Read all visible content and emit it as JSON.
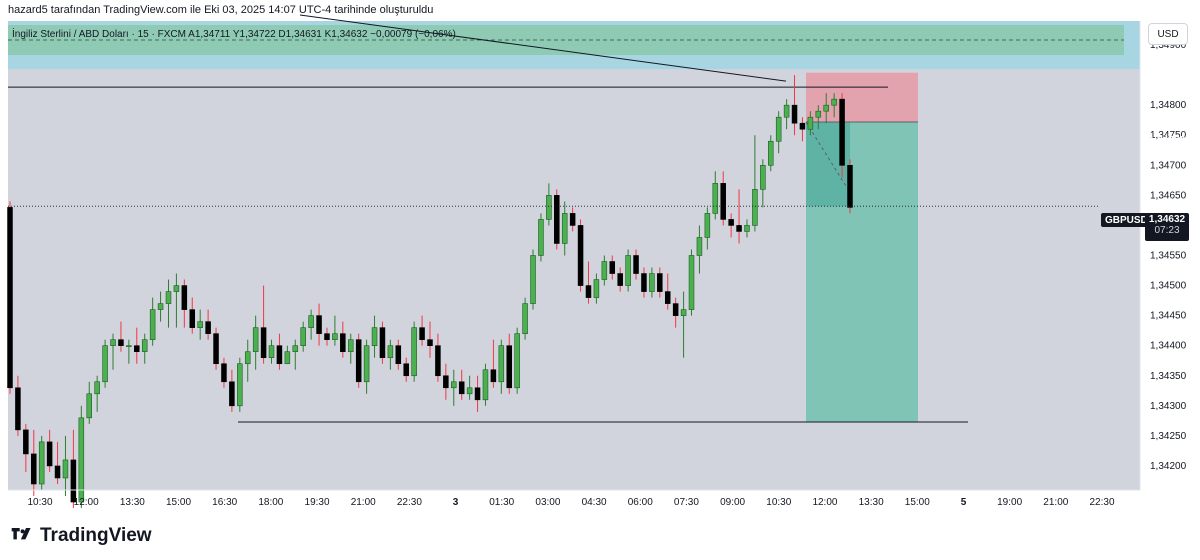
{
  "header": {
    "caption": "hazard5 tarafından TradingView.com ile Eki 03, 2025 14:07 UTC-4 tarihinde oluşturuldu"
  },
  "legend": {
    "text": "İngiliz Sterlini / ABD Doları · 15 · FXCM  A1,34711  Y1,34722  D1,34631  K1,34632  −0,00079 (−0,06%)"
  },
  "currency_button": "USD",
  "price_axis": {
    "ticks": [
      "1,34900",
      "1,34800",
      "1,34750",
      "1,34700",
      "1,34650",
      "1,34550",
      "1,34500",
      "1,34450",
      "1,34400",
      "1,34350",
      "1,34300",
      "1,34250",
      "1,34200"
    ]
  },
  "time_axis": {
    "labels": [
      "10:30",
      "12:00",
      "13:30",
      "15:00",
      "16:30",
      "18:00",
      "19:30",
      "21:00",
      "22:30",
      "3",
      "01:30",
      "03:00",
      "04:30",
      "06:00",
      "07:30",
      "09:00",
      "10:30",
      "12:00",
      "13:30",
      "15:00",
      "5",
      "19:00",
      "21:00",
      "22:30"
    ]
  },
  "price_labels": {
    "stop": "1,34854",
    "entry": "1,34772",
    "last_symbol": "GBPUSD",
    "last_price": "1,34632",
    "countdown": "07:23",
    "target": "1,34273"
  },
  "colors": {
    "bull": "#4caf50",
    "bear": "#000000",
    "zone_blue": "#a8d5e2",
    "zone_green": "#8fcbb4",
    "stop_zone": "#e3a3ae",
    "target_zone": "#7fc4b4",
    "stop_tag": "#f23645",
    "entry_tag": "#787b86",
    "target_tag": "#089981"
  },
  "chart_data": {
    "type": "candlestick",
    "symbol": "GBPUSD",
    "interval": "15",
    "ylim": [
      1.3416,
      1.3494
    ],
    "candles": [
      [
        1.3463,
        1.3464,
        1.3432,
        1.3433
      ],
      [
        1.3433,
        1.3435,
        1.3425,
        1.3426
      ],
      [
        1.3426,
        1.3427,
        1.3419,
        1.3422
      ],
      [
        1.3422,
        1.3426,
        1.3415,
        1.3417
      ],
      [
        1.3417,
        1.3425,
        1.3416,
        1.3424
      ],
      [
        1.3424,
        1.3426,
        1.3419,
        1.342
      ],
      [
        1.342,
        1.3424,
        1.3417,
        1.3418
      ],
      [
        1.3418,
        1.3425,
        1.3415,
        1.3421
      ],
      [
        1.3421,
        1.3426,
        1.3413,
        1.3414
      ],
      [
        1.3414,
        1.343,
        1.3413,
        1.3428
      ],
      [
        1.3428,
        1.3434,
        1.3427,
        1.3432
      ],
      [
        1.3432,
        1.3435,
        1.3429,
        1.3434
      ],
      [
        1.3434,
        1.3441,
        1.3433,
        1.344
      ],
      [
        1.344,
        1.3442,
        1.3436,
        1.3441
      ],
      [
        1.3441,
        1.3444,
        1.3439,
        1.344
      ],
      [
        1.344,
        1.3441,
        1.3437,
        1.344
      ],
      [
        1.344,
        1.3443,
        1.3437,
        1.3439
      ],
      [
        1.3439,
        1.3442,
        1.3437,
        1.3441
      ],
      [
        1.3441,
        1.3448,
        1.344,
        1.3446
      ],
      [
        1.3446,
        1.3449,
        1.3444,
        1.3447
      ],
      [
        1.3447,
        1.3451,
        1.3443,
        1.3449
      ],
      [
        1.3449,
        1.3452,
        1.3443,
        1.345
      ],
      [
        1.345,
        1.3451,
        1.3443,
        1.3446
      ],
      [
        1.3446,
        1.3448,
        1.3442,
        1.3443
      ],
      [
        1.3443,
        1.3446,
        1.3441,
        1.3444
      ],
      [
        1.3444,
        1.3446,
        1.3441,
        1.3442
      ],
      [
        1.3442,
        1.3443,
        1.3436,
        1.3437
      ],
      [
        1.3437,
        1.3438,
        1.3433,
        1.3434
      ],
      [
        1.3434,
        1.3436,
        1.3429,
        1.343
      ],
      [
        1.343,
        1.3438,
        1.3429,
        1.3437
      ],
      [
        1.3437,
        1.3441,
        1.3434,
        1.3439
      ],
      [
        1.3439,
        1.3445,
        1.3436,
        1.3443
      ],
      [
        1.3443,
        1.345,
        1.3437,
        1.3438
      ],
      [
        1.3438,
        1.3441,
        1.3437,
        1.344
      ],
      [
        1.344,
        1.3442,
        1.3436,
        1.3437
      ],
      [
        1.3437,
        1.344,
        1.3437,
        1.3439
      ],
      [
        1.3439,
        1.3441,
        1.3436,
        1.344
      ],
      [
        1.344,
        1.3444,
        1.3439,
        1.3443
      ],
      [
        1.3443,
        1.3446,
        1.3441,
        1.3445
      ],
      [
        1.3445,
        1.3447,
        1.344,
        1.3442
      ],
      [
        1.3442,
        1.3443,
        1.344,
        1.3441
      ],
      [
        1.3441,
        1.3445,
        1.344,
        1.3442
      ],
      [
        1.3442,
        1.3444,
        1.3438,
        1.3439
      ],
      [
        1.3439,
        1.3442,
        1.3437,
        1.3441
      ],
      [
        1.3441,
        1.3442,
        1.3433,
        1.3434
      ],
      [
        1.3434,
        1.3441,
        1.3432,
        1.344
      ],
      [
        1.344,
        1.3445,
        1.3438,
        1.3443
      ],
      [
        1.3443,
        1.3444,
        1.3437,
        1.3438
      ],
      [
        1.3438,
        1.3441,
        1.3436,
        1.344
      ],
      [
        1.344,
        1.3441,
        1.3436,
        1.3437
      ],
      [
        1.3437,
        1.3438,
        1.3434,
        1.3435
      ],
      [
        1.3435,
        1.3444,
        1.3434,
        1.3443
      ],
      [
        1.3443,
        1.3445,
        1.344,
        1.3441
      ],
      [
        1.3441,
        1.3444,
        1.3438,
        1.344
      ],
      [
        1.344,
        1.3442,
        1.3434,
        1.3435
      ],
      [
        1.3435,
        1.3437,
        1.3431,
        1.3433
      ],
      [
        1.3433,
        1.3436,
        1.343,
        1.3434
      ],
      [
        1.3434,
        1.3436,
        1.3431,
        1.3432
      ],
      [
        1.3432,
        1.3435,
        1.3431,
        1.3433
      ],
      [
        1.3433,
        1.3435,
        1.3429,
        1.3431
      ],
      [
        1.3431,
        1.3437,
        1.343,
        1.3436
      ],
      [
        1.3436,
        1.3441,
        1.3433,
        1.3434
      ],
      [
        1.3434,
        1.3441,
        1.3432,
        1.344
      ],
      [
        1.344,
        1.3442,
        1.3432,
        1.3433
      ],
      [
        1.3433,
        1.3443,
        1.3432,
        1.3442
      ],
      [
        1.3442,
        1.3448,
        1.3441,
        1.3447
      ],
      [
        1.3447,
        1.3456,
        1.3446,
        1.3455
      ],
      [
        1.3455,
        1.3462,
        1.3454,
        1.3461
      ],
      [
        1.3461,
        1.3467,
        1.346,
        1.3465
      ],
      [
        1.3465,
        1.3466,
        1.3456,
        1.3457
      ],
      [
        1.3457,
        1.3464,
        1.3455,
        1.3462
      ],
      [
        1.3462,
        1.3463,
        1.3459,
        1.346
      ],
      [
        1.346,
        1.3461,
        1.3449,
        1.345
      ],
      [
        1.345,
        1.3454,
        1.3447,
        1.3448
      ],
      [
        1.3448,
        1.3452,
        1.3447,
        1.3451
      ],
      [
        1.3451,
        1.3455,
        1.345,
        1.3454
      ],
      [
        1.3454,
        1.3455,
        1.3451,
        1.3452
      ],
      [
        1.3452,
        1.3453,
        1.3449,
        1.345
      ],
      [
        1.345,
        1.3456,
        1.3449,
        1.3455
      ],
      [
        1.3455,
        1.3456,
        1.3451,
        1.3452
      ],
      [
        1.3452,
        1.3453,
        1.3448,
        1.3449
      ],
      [
        1.3449,
        1.3453,
        1.3448,
        1.3452
      ],
      [
        1.3452,
        1.3453,
        1.3448,
        1.3449
      ],
      [
        1.3449,
        1.3452,
        1.3446,
        1.3447
      ],
      [
        1.3447,
        1.3448,
        1.3443,
        1.3445
      ],
      [
        1.3445,
        1.3449,
        1.3438,
        1.3446
      ],
      [
        1.3446,
        1.3456,
        1.3445,
        1.3455
      ],
      [
        1.3455,
        1.346,
        1.3452,
        1.3458
      ],
      [
        1.3458,
        1.3463,
        1.3456,
        1.3462
      ],
      [
        1.3462,
        1.3469,
        1.3461,
        1.3467
      ],
      [
        1.3467,
        1.3469,
        1.346,
        1.3461
      ],
      [
        1.3461,
        1.3462,
        1.3458,
        1.346
      ],
      [
        1.346,
        1.3466,
        1.3457,
        1.3459
      ],
      [
        1.3459,
        1.3461,
        1.3458,
        1.346
      ],
      [
        1.346,
        1.3475,
        1.3459,
        1.3466
      ],
      [
        1.3466,
        1.3471,
        1.3463,
        1.347
      ],
      [
        1.347,
        1.3475,
        1.3469,
        1.3474
      ],
      [
        1.3474,
        1.3479,
        1.3472,
        1.3478
      ],
      [
        1.3478,
        1.3481,
        1.3476,
        1.348
      ],
      [
        1.348,
        1.3485,
        1.3475,
        1.3477
      ],
      [
        1.3477,
        1.3478,
        1.3474,
        1.3476
      ],
      [
        1.3476,
        1.3479,
        1.3475,
        1.3478
      ],
      [
        1.3478,
        1.348,
        1.3476,
        1.3479
      ],
      [
        1.3479,
        1.3482,
        1.3477,
        1.348
      ],
      [
        1.348,
        1.3482,
        1.3478,
        1.3481
      ],
      [
        1.3481,
        1.3482,
        1.3468,
        1.347
      ],
      [
        1.347,
        1.3471,
        1.3462,
        1.3463
      ]
    ],
    "horizontal_lines": [
      1.3483,
      1.34273
    ],
    "trendline": [
      [
        0,
        1.34985
      ],
      [
        1.0,
        1.3484
      ]
    ],
    "position": {
      "stop": 1.34854,
      "entry": 1.34772,
      "target": 1.34273
    }
  }
}
